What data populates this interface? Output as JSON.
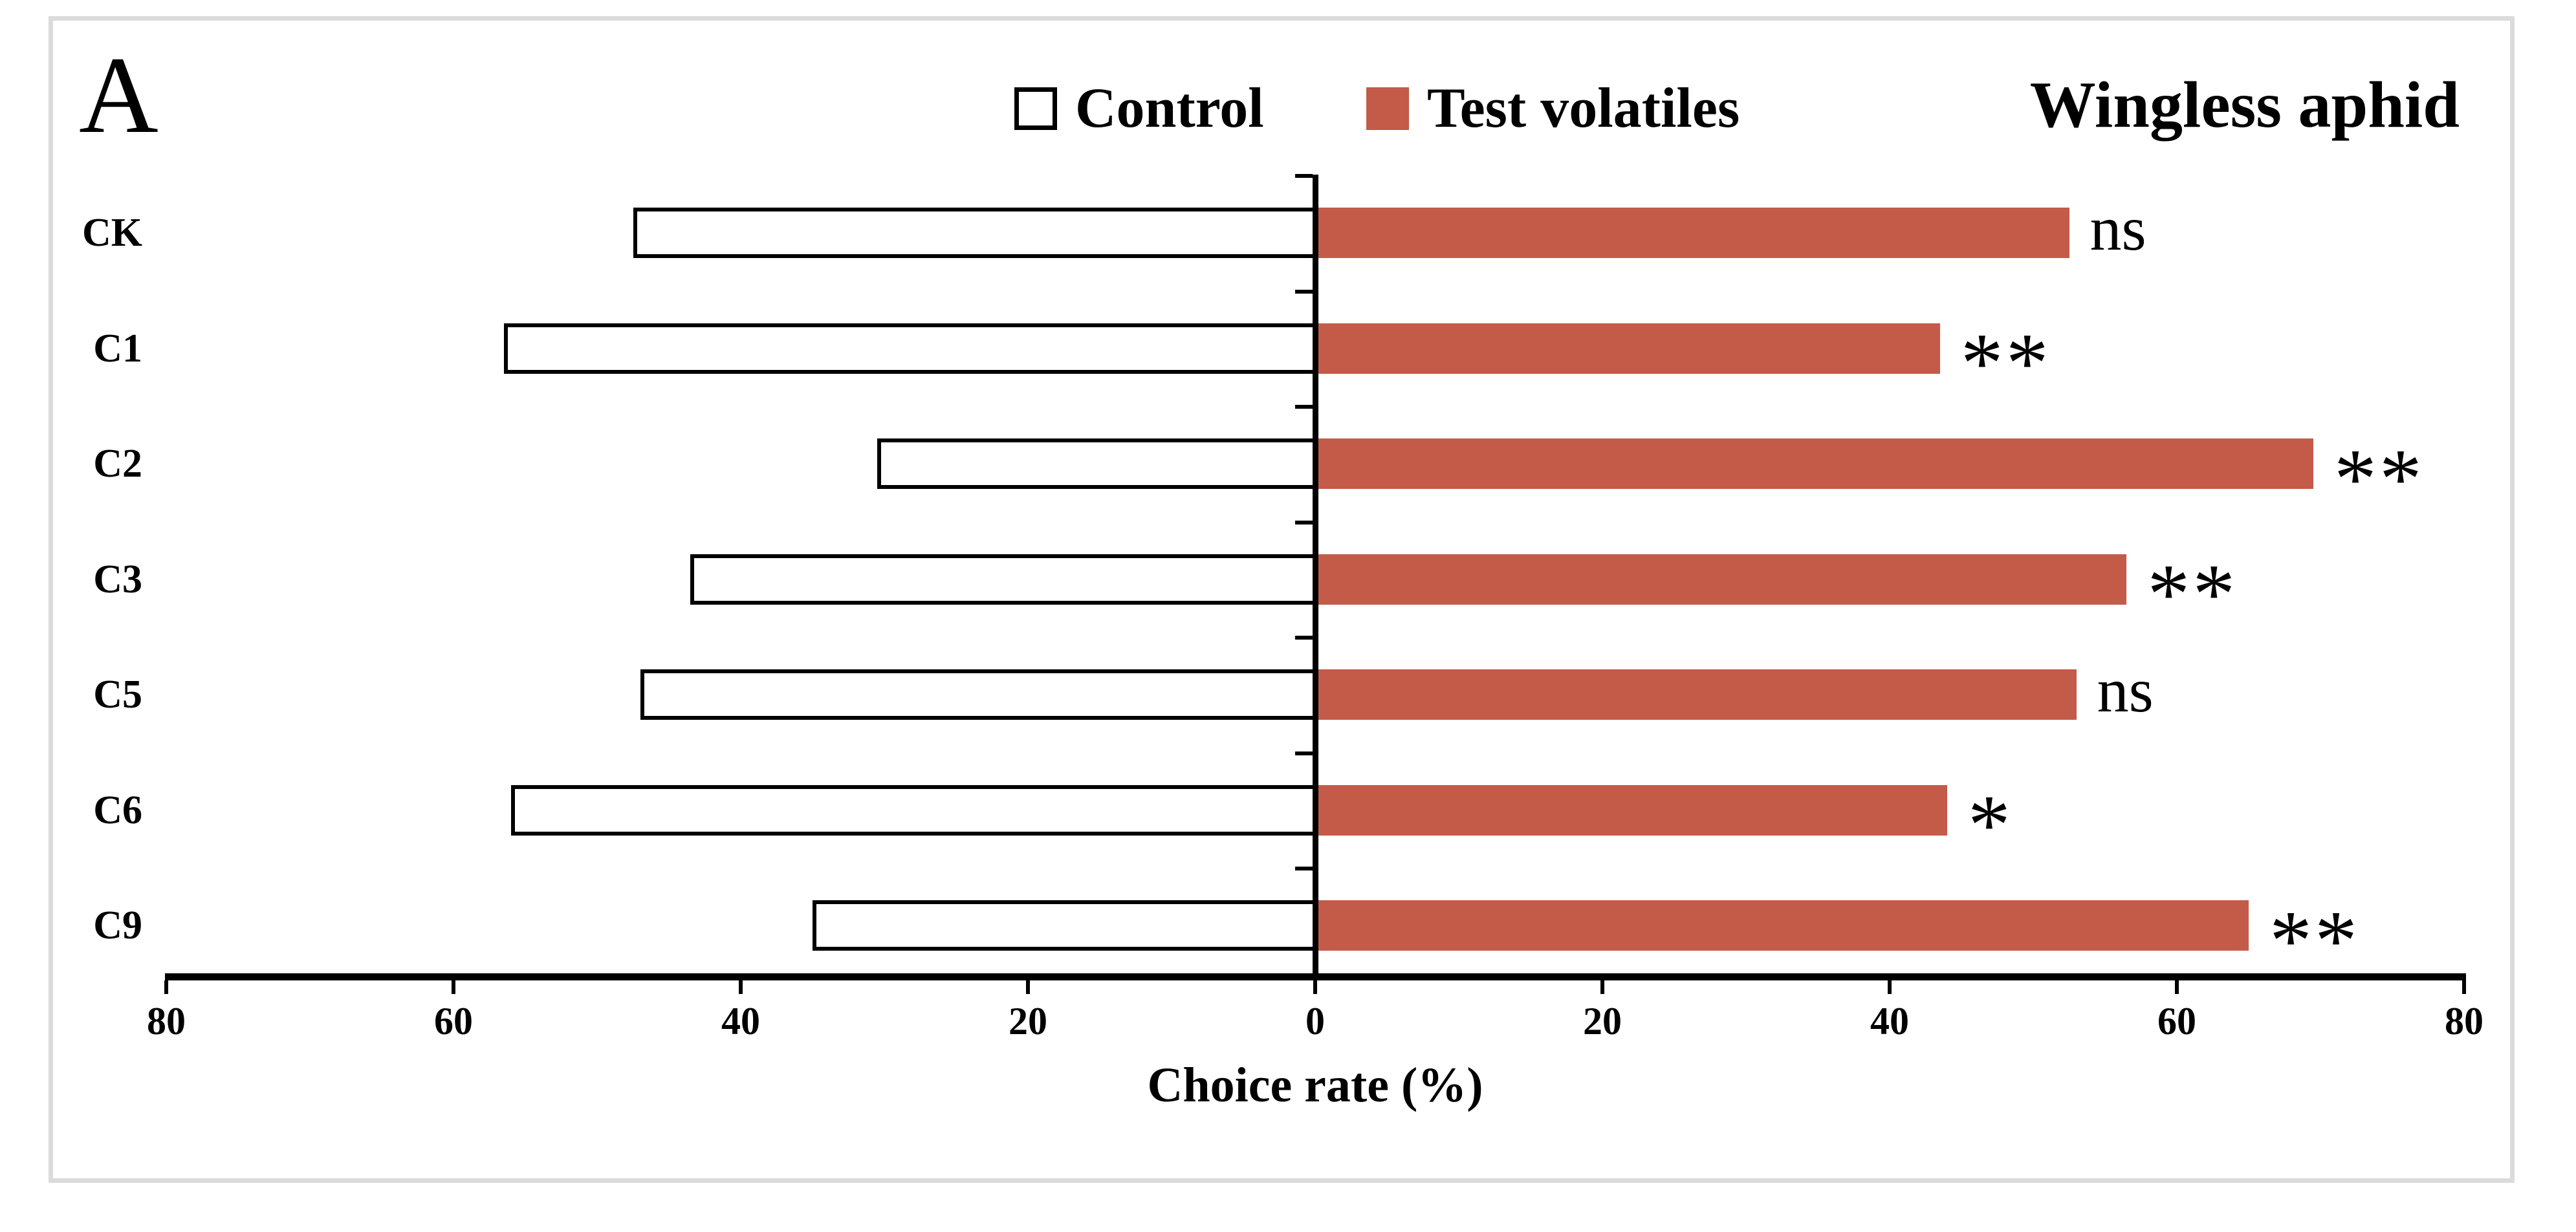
{
  "panel_label": "A",
  "title": "Wingless aphid",
  "legend": {
    "control_label": "Control",
    "test_label": "Test volatiles"
  },
  "axis": {
    "xlabel": "Choice rate (%)",
    "tick_labels": [
      "80",
      "60",
      "40",
      "20",
      "0",
      "20",
      "40",
      "60",
      "80"
    ]
  },
  "colors": {
    "test_bar": "#C45B49",
    "control_bar_fill": "#FFFFFF",
    "bar_border": "#000000",
    "axis_line": "#000000",
    "frame_border": "#DBDBDB",
    "text": "#000000"
  },
  "chart_data": {
    "type": "bar",
    "orientation": "horizontal-diverging",
    "title": "Wingless aphid",
    "xlabel": "Choice rate (%)",
    "categories": [
      "CK",
      "C1",
      "C2",
      "C3",
      "C5",
      "C6",
      "C9"
    ],
    "series": [
      {
        "name": "Control",
        "side": "left",
        "values": [
          47.5,
          56.5,
          30.5,
          43.5,
          47,
          56,
          35
        ]
      },
      {
        "name": "Test volatiles",
        "side": "right",
        "values": [
          52.5,
          43.5,
          69.5,
          56.5,
          53,
          44,
          65
        ]
      }
    ],
    "significance": [
      "ns",
      "**",
      "**",
      "**",
      "ns",
      "*",
      "**"
    ],
    "xlim": [
      -80,
      80
    ],
    "x_tick_step": 20,
    "x_ticks": [
      -80,
      -60,
      -40,
      -20,
      0,
      20,
      40,
      60,
      80
    ],
    "grid": false,
    "legend_position": "top-center"
  }
}
